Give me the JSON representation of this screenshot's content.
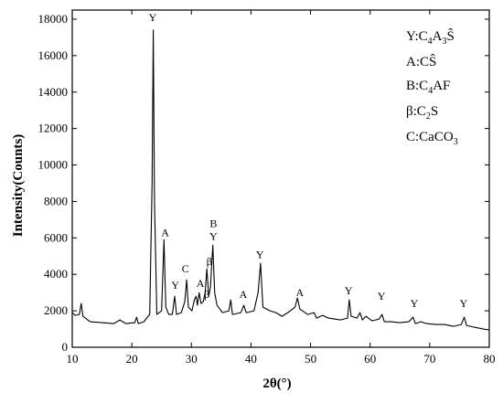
{
  "chart_data": {
    "type": "line",
    "xlabel": "2θ(°)",
    "ylabel": "Intensity(Counts)",
    "xlim": [
      10,
      80
    ],
    "ylim": [
      0,
      18500
    ],
    "x_ticks": [
      "10",
      "20",
      "30",
      "40",
      "50",
      "60",
      "70",
      "80"
    ],
    "y_ticks": [
      "0",
      "2000",
      "4000",
      "6000",
      "8000",
      "10000",
      "12000",
      "14000",
      "16000",
      "18000"
    ],
    "grid": false,
    "legend_position": "top-right",
    "legend": [
      {
        "key": "Y",
        "formula": "C4A3Ŝ"
      },
      {
        "key": "A",
        "formula": "CŜ"
      },
      {
        "key": "B",
        "formula": "C4AF"
      },
      {
        "key": "β",
        "formula": "C2S"
      },
      {
        "key": "C",
        "formula": "CaCO3"
      }
    ],
    "series": [
      {
        "color": "#000000",
        "points": [
          [
            10.0,
            1900
          ],
          [
            10.5,
            1750
          ],
          [
            11.2,
            1800
          ],
          [
            11.5,
            2400
          ],
          [
            11.8,
            1700
          ],
          [
            13,
            1400
          ],
          [
            15,
            1350
          ],
          [
            17,
            1300
          ],
          [
            18,
            1500
          ],
          [
            19,
            1300
          ],
          [
            20.5,
            1350
          ],
          [
            20.8,
            1650
          ],
          [
            21.1,
            1300
          ],
          [
            22,
            1400
          ],
          [
            23.0,
            1800
          ],
          [
            23.4,
            9000
          ],
          [
            23.6,
            17400
          ],
          [
            23.8,
            8000
          ],
          [
            24.2,
            1800
          ],
          [
            25.0,
            2000
          ],
          [
            25.4,
            5900
          ],
          [
            25.7,
            2200
          ],
          [
            26.2,
            1800
          ],
          [
            26.8,
            1800
          ],
          [
            27.2,
            2800
          ],
          [
            27.5,
            1800
          ],
          [
            28.3,
            1900
          ],
          [
            28.9,
            2500
          ],
          [
            29.2,
            3700
          ],
          [
            29.5,
            2200
          ],
          [
            30.1,
            2000
          ],
          [
            30.5,
            2600
          ],
          [
            30.8,
            2800
          ],
          [
            31.0,
            2300
          ],
          [
            31.3,
            3000
          ],
          [
            31.6,
            2400
          ],
          [
            32.0,
            2500
          ],
          [
            32.3,
            3000
          ],
          [
            32.6,
            4300
          ],
          [
            32.9,
            2800
          ],
          [
            33.2,
            3300
          ],
          [
            33.6,
            5600
          ],
          [
            33.9,
            3000
          ],
          [
            34.3,
            2300
          ],
          [
            35.2,
            1900
          ],
          [
            36.3,
            2000
          ],
          [
            36.6,
            2600
          ],
          [
            36.9,
            1800
          ],
          [
            38.3,
            1900
          ],
          [
            38.8,
            2300
          ],
          [
            39.2,
            1900
          ],
          [
            40.5,
            2000
          ],
          [
            41.2,
            3000
          ],
          [
            41.6,
            4600
          ],
          [
            42.0,
            2200
          ],
          [
            43.2,
            2000
          ],
          [
            44.2,
            1900
          ],
          [
            45.2,
            1700
          ],
          [
            46.2,
            1900
          ],
          [
            47.4,
            2200
          ],
          [
            47.8,
            2700
          ],
          [
            48.2,
            2100
          ],
          [
            49.5,
            1800
          ],
          [
            50.6,
            1900
          ],
          [
            51.0,
            1600
          ],
          [
            52,
            1750
          ],
          [
            53,
            1600
          ],
          [
            54,
            1550
          ],
          [
            55,
            1500
          ],
          [
            56.2,
            1600
          ],
          [
            56.5,
            2600
          ],
          [
            56.8,
            1700
          ],
          [
            57.8,
            1600
          ],
          [
            58.3,
            1900
          ],
          [
            58.7,
            1500
          ],
          [
            59.3,
            1700
          ],
          [
            60.3,
            1450
          ],
          [
            61.5,
            1550
          ],
          [
            62.0,
            1800
          ],
          [
            62.4,
            1400
          ],
          [
            63.5,
            1400
          ],
          [
            65,
            1350
          ],
          [
            66.5,
            1400
          ],
          [
            67.2,
            1650
          ],
          [
            67.6,
            1300
          ],
          [
            68.5,
            1400
          ],
          [
            69.5,
            1300
          ],
          [
            71,
            1250
          ],
          [
            72.5,
            1250
          ],
          [
            74,
            1150
          ],
          [
            75.3,
            1250
          ],
          [
            75.8,
            1650
          ],
          [
            76.2,
            1200
          ],
          [
            77.5,
            1100
          ],
          [
            79,
            1000
          ],
          [
            80,
            950
          ]
        ]
      }
    ],
    "annotations": [
      {
        "text": "Y",
        "x": 23.5,
        "y": 17900
      },
      {
        "text": "A",
        "x": 25.6,
        "y": 6100
      },
      {
        "text": "C",
        "x": 29.0,
        "y": 4100
      },
      {
        "text": "Y",
        "x": 27.3,
        "y": 3200
      },
      {
        "text": "A",
        "x": 31.5,
        "y": 3300
      },
      {
        "text": "β",
        "x": 32.6,
        "y": 2700
      },
      {
        "text": "β",
        "x": 33.0,
        "y": 4500
      },
      {
        "text": "Y",
        "x": 33.7,
        "y": 5900
      },
      {
        "text": "B",
        "x": 33.7,
        "y": 6600
      },
      {
        "text": "Y",
        "x": 41.5,
        "y": 4900
      },
      {
        "text": "A",
        "x": 38.7,
        "y": 2700
      },
      {
        "text": "A",
        "x": 48.2,
        "y": 2800
      },
      {
        "text": "Y",
        "x": 56.4,
        "y": 2900
      },
      {
        "text": "Y",
        "x": 61.9,
        "y": 2600
      },
      {
        "text": "Y",
        "x": 67.4,
        "y": 2200
      },
      {
        "text": "Y",
        "x": 75.7,
        "y": 2200
      }
    ]
  }
}
